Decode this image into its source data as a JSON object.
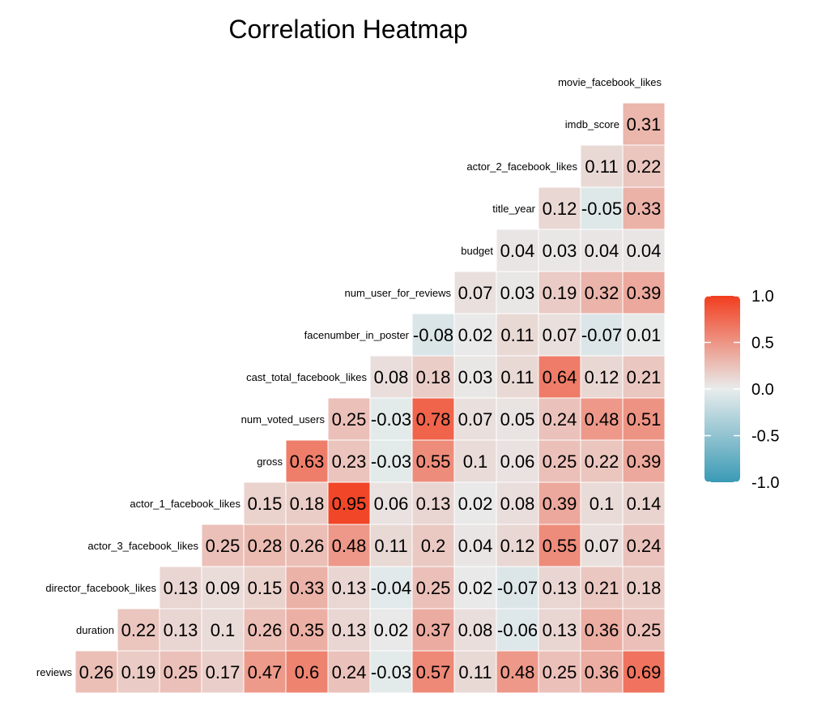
{
  "chart_data": {
    "type": "heatmap",
    "title": "Correlation Heatmap",
    "variables": [
      "reviews",
      "duration",
      "director_facebook_likes",
      "actor_3_facebook_likes",
      "actor_1_facebook_likes",
      "gross",
      "num_voted_users",
      "cast_total_facebook_likes",
      "facenumber_in_poster",
      "num_user_for_reviews",
      "budget",
      "title_year",
      "actor_2_facebook_likes",
      "imdb_score",
      "movie_facebook_likes"
    ],
    "row_labels": [
      "movie_facebook_likes",
      "imdb_score",
      "actor_2_facebook_likes",
      "title_year",
      "budget",
      "num_user_for_reviews",
      "facenumber_in_poster",
      "cast_total_facebook_likes",
      "num_voted_users",
      "gross",
      "actor_1_facebook_likes",
      "actor_3_facebook_likes",
      "director_facebook_likes",
      "duration",
      "reviews"
    ],
    "row_label_display": [
      "movie_facebook_likes",
      "imdb_score",
      "actor_2_facebook_likes",
      "title_year",
      "budget",
      "num_user_for_reviews",
      "facenumber_in_poster",
      "cast_total_facebook_likes",
      "num_voted_users",
      "gross",
      "actor_1_facebook_likes",
      "actor_3_facebook_likes",
      "director_facebook_likes",
      "duration",
      "reviews"
    ],
    "rows": [
      [],
      [
        "0.31"
      ],
      [
        "0.11",
        "0.22"
      ],
      [
        "0.12",
        "-0.05",
        "0.33"
      ],
      [
        "0.04",
        "0.03",
        "0.04",
        "0.04"
      ],
      [
        "0.07",
        "0.03",
        "0.19",
        "0.32",
        "0.39"
      ],
      [
        "-0.08",
        "0.02",
        "0.11",
        "0.07",
        "-0.07",
        "0.01"
      ],
      [
        "0.08",
        "0.18",
        "0.03",
        "0.11",
        "0.64",
        "0.12",
        "0.21"
      ],
      [
        "0.25",
        "-0.03",
        "0.78",
        "0.07",
        "0.05",
        "0.24",
        "0.48",
        "0.51"
      ],
      [
        "0.63",
        "0.23",
        "-0.03",
        "0.55",
        "0.1",
        "0.06",
        "0.25",
        "0.22",
        "0.39"
      ],
      [
        "0.15",
        "0.18",
        "0.95",
        "0.06",
        "0.13",
        "0.02",
        "0.08",
        "0.39",
        "0.1",
        "0.14"
      ],
      [
        "0.25",
        "0.28",
        "0.26",
        "0.48",
        "0.11",
        "0.2",
        "0.04",
        "0.12",
        "0.55",
        "0.07",
        "0.24"
      ],
      [
        "0.13",
        "0.09",
        "0.15",
        "0.33",
        "0.13",
        "-0.04",
        "0.25",
        "0.02",
        "-0.07",
        "0.13",
        "0.21",
        "0.18"
      ],
      [
        "0.22",
        "0.13",
        "0.1",
        "0.26",
        "0.35",
        "0.13",
        "0.02",
        "0.37",
        "0.08",
        "-0.06",
        "0.13",
        "0.36",
        "0.25"
      ],
      [
        "0.26",
        "0.19",
        "0.25",
        "0.17",
        "0.47",
        "0.6",
        "0.24",
        "-0.03",
        "0.57",
        "0.11",
        "0.48",
        "0.25",
        "0.36",
        "0.69"
      ]
    ],
    "color_scale": {
      "low": "#3a9ab5",
      "mid": "#e8ecec",
      "high": "#f23d1e",
      "range": [
        -1.0,
        1.0
      ],
      "ticks": [
        "1.0",
        "0.5",
        "0.0",
        "-0.5",
        "-1.0"
      ]
    },
    "legend_position": "right"
  }
}
